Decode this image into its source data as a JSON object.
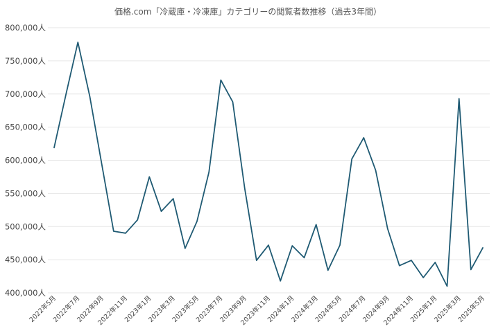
{
  "chart_data": {
    "type": "line",
    "title": "価格.com「冷蔵庫・冷凍庫」カテゴリーの閲覧者数推移（過去3年間）",
    "xlabel": "",
    "ylabel": "",
    "ylim": [
      400000,
      800000
    ],
    "y_ticks": [
      400000,
      450000,
      500000,
      550000,
      600000,
      650000,
      700000,
      750000,
      800000
    ],
    "y_tick_labels": [
      "400,000人",
      "450,000人",
      "500,000人",
      "550,000人",
      "600,000人",
      "650,000人",
      "700,000人",
      "750,000人",
      "800,000人"
    ],
    "grid": true,
    "legend": "none",
    "x": [
      "2022年5月",
      "2022年6月",
      "2022年7月",
      "2022年8月",
      "2022年9月",
      "2022年10月",
      "2022年11月",
      "2022年12月",
      "2023年1月",
      "2023年2月",
      "2023年3月",
      "2023年4月",
      "2023年5月",
      "2023年6月",
      "2023年7月",
      "2023年8月",
      "2023年9月",
      "2023年10月",
      "2023年11月",
      "2023年12月",
      "2024年1月",
      "2024年2月",
      "2024年3月",
      "2024年4月",
      "2024年5月",
      "2024年6月",
      "2024年7月",
      "2024年8月",
      "2024年9月",
      "2024年10月",
      "2024年11月",
      "2024年12月",
      "2025年1月",
      "2025年2月",
      "2025年3月",
      "2025年4月",
      "2025年5月"
    ],
    "x_tick_labels": [
      "2022年5月",
      "2022年7月",
      "2022年9月",
      "2022年11月",
      "2023年1月",
      "2023年3月",
      "2023年5月",
      "2023年7月",
      "2023年9月",
      "2023年11月",
      "2024年1月",
      "2024年3月",
      "2024年5月",
      "2024年7月",
      "2024年9月",
      "2024年11月",
      "2025年1月",
      "2025年3月",
      "2025年5月"
    ],
    "series": [
      {
        "name": "",
        "color": "#1f5a73",
        "values": [
          619000,
          700000,
          778000,
          696000,
          594000,
          493000,
          490000,
          510000,
          575000,
          523000,
          542000,
          467000,
          508000,
          582000,
          721000,
          688000,
          558000,
          449000,
          472000,
          418000,
          471000,
          453000,
          503000,
          434000,
          472000,
          602000,
          634000,
          585000,
          497000,
          441000,
          449000,
          423000,
          446000,
          410000,
          693000,
          435000,
          468000
        ]
      }
    ]
  }
}
